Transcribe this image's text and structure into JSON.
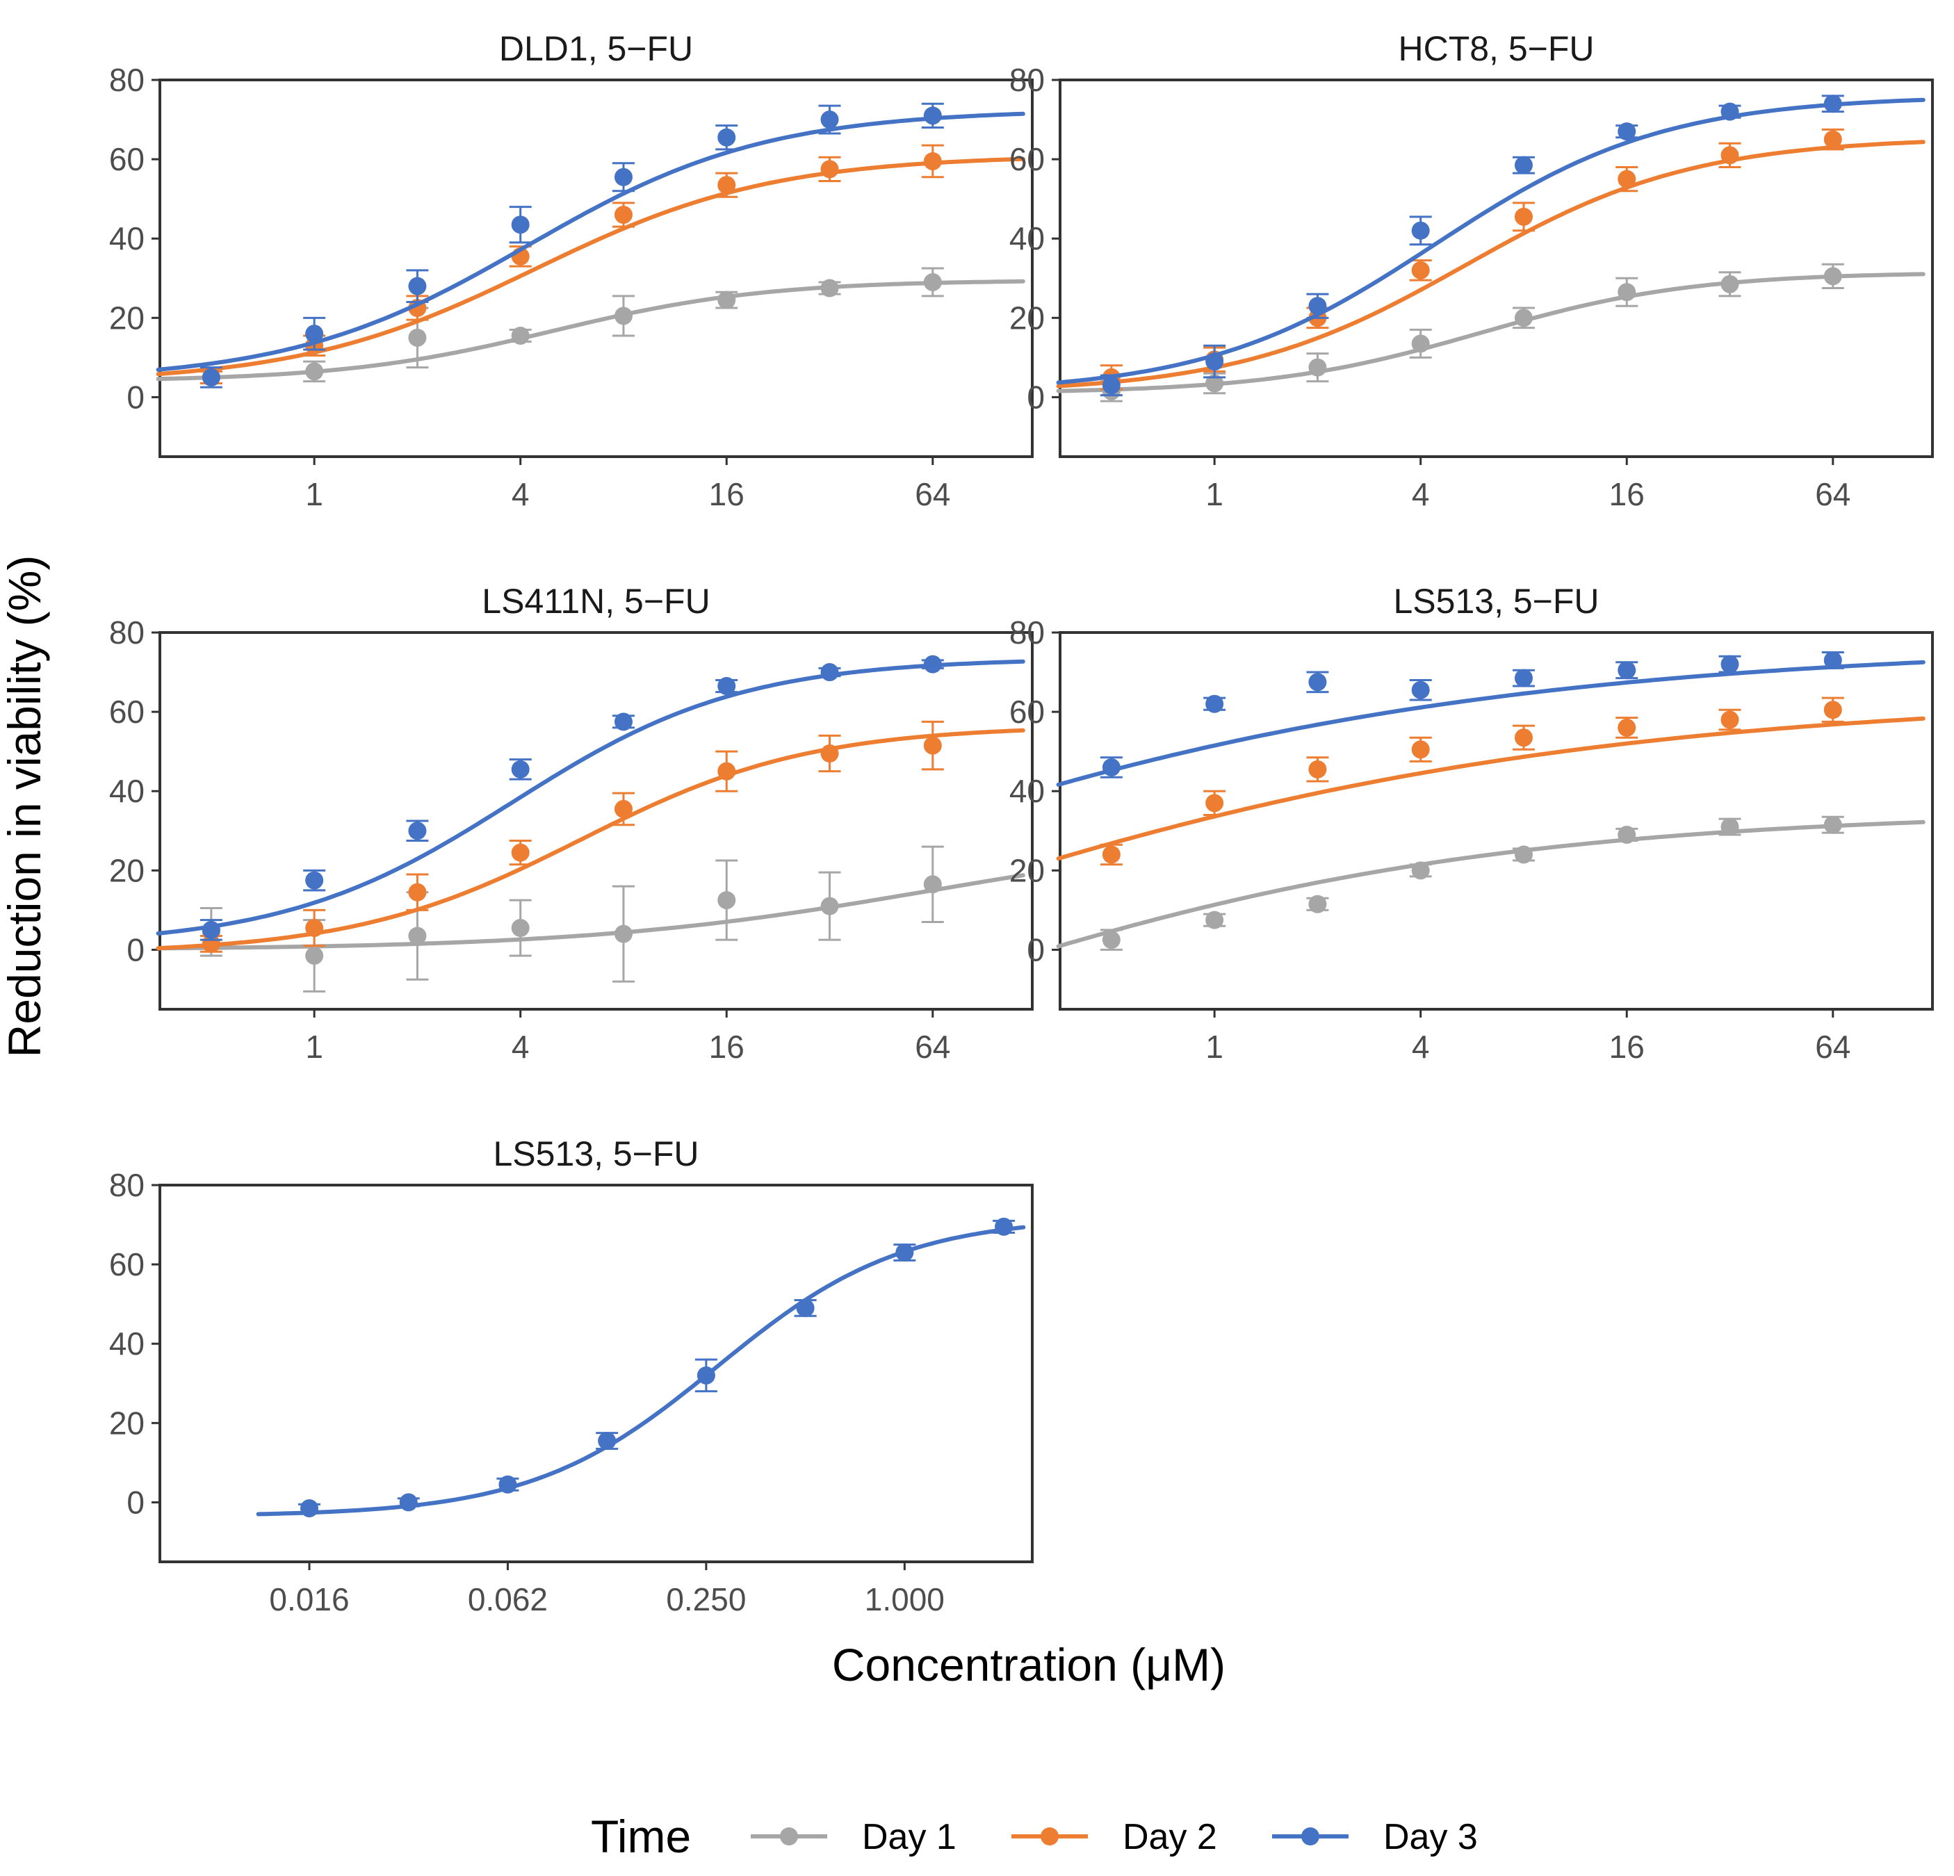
{
  "figure": {
    "ylabel": "Reduction in viability (%)",
    "xlabel": "Concentration (μM)",
    "legend": {
      "title": "Time",
      "items": [
        {
          "label": "Day 1",
          "color": "#a6a6a6"
        },
        {
          "label": "Day 2",
          "color": "#ed7d31"
        },
        {
          "label": "Day 3",
          "color": "#4472c4"
        }
      ]
    }
  },
  "chart_data": [
    {
      "type": "line",
      "title": "DLD1, 5−FU",
      "x_scale": "log2",
      "xlim": [
        0.354,
        125
      ],
      "ylim": [
        -15,
        80
      ],
      "x_ticks": [
        1,
        4,
        16,
        64
      ],
      "x_tick_labels": [
        "1",
        "4",
        "16",
        "64"
      ],
      "y_ticks": [
        0,
        20,
        40,
        60,
        80
      ],
      "y_tick_labels": [
        "0",
        "20",
        "40",
        "60",
        "80"
      ],
      "series": [
        {
          "name": "Day 1",
          "x": [
            0.5,
            1,
            2,
            4,
            8,
            16,
            32,
            64
          ],
          "values": [
            5,
            6.5,
            15,
            15.5,
            20.5,
            24.5,
            27.5,
            29
          ],
          "errors": [
            1.5,
            2.5,
            7.5,
            1.5,
            5,
            2,
            1.5,
            3.5
          ],
          "fit": {
            "bottom": 4,
            "top": 29.5,
            "ec50": 5,
            "hill": 1.4
          }
        },
        {
          "name": "Day 2",
          "x": [
            0.5,
            1,
            2,
            4,
            8,
            16,
            32,
            64
          ],
          "values": [
            5,
            13,
            22.5,
            35.5,
            46,
            53.5,
            57.5,
            59.5
          ],
          "errors": [
            1.5,
            2.5,
            3,
            2.5,
            3,
            3,
            3,
            4
          ],
          "fit": {
            "bottom": 3.5,
            "top": 61,
            "ec50": 4.4,
            "hill": 1.25
          }
        },
        {
          "name": "Day 3",
          "x": [
            0.5,
            1,
            2,
            4,
            8,
            16,
            32,
            64
          ],
          "values": [
            5,
            16,
            28,
            43.5,
            55.5,
            65.5,
            70,
            71
          ],
          "errors": [
            2.5,
            4,
            4,
            4.5,
            3.5,
            3,
            3.5,
            3
          ],
          "fit": {
            "bottom": 4,
            "top": 72.5,
            "ec50": 4.2,
            "hill": 1.25
          }
        }
      ]
    },
    {
      "type": "line",
      "title": "HCT8, 5−FU",
      "x_scale": "log2",
      "xlim": [
        0.354,
        125
      ],
      "ylim": [
        -15,
        80
      ],
      "x_ticks": [
        1,
        4,
        16,
        64
      ],
      "x_tick_labels": [
        "1",
        "4",
        "16",
        "64"
      ],
      "y_ticks": [
        0,
        20,
        40,
        60,
        80
      ],
      "y_tick_labels": [
        "0",
        "20",
        "40",
        "60",
        "80"
      ],
      "series": [
        {
          "name": "Day 1",
          "x": [
            0.5,
            1,
            2,
            4,
            8,
            16,
            32,
            64
          ],
          "values": [
            1.5,
            3.5,
            7.5,
            13.5,
            20,
            26.5,
            28.5,
            30.5
          ],
          "errors": [
            2.5,
            2.5,
            3.5,
            3.5,
            2.5,
            3.5,
            3,
            3
          ],
          "fit": {
            "bottom": 1,
            "top": 31.5,
            "ec50": 6,
            "hill": 1.4
          }
        },
        {
          "name": "Day 2",
          "x": [
            0.5,
            1,
            2,
            4,
            8,
            16,
            32,
            64
          ],
          "values": [
            5,
            9.5,
            20,
            32,
            45.5,
            55,
            61,
            65
          ],
          "errors": [
            3,
            3,
            2.5,
            2.5,
            3.5,
            3,
            3,
            2.5
          ],
          "fit": {
            "bottom": 1,
            "top": 65.5,
            "ec50": 5.4,
            "hill": 1.3
          }
        },
        {
          "name": "Day 3",
          "x": [
            0.5,
            1,
            2,
            4,
            8,
            16,
            32,
            64
          ],
          "values": [
            3,
            9,
            23,
            42,
            58.5,
            67,
            72,
            74
          ],
          "errors": [
            2.5,
            4,
            3,
            3.5,
            2,
            1.5,
            1.5,
            2
          ],
          "fit": {
            "bottom": 1,
            "top": 76,
            "ec50": 4.4,
            "hill": 1.3
          }
        }
      ]
    },
    {
      "type": "line",
      "title": "LS411N, 5−FU",
      "x_scale": "log2",
      "xlim": [
        0.354,
        125
      ],
      "ylim": [
        -15,
        80
      ],
      "x_ticks": [
        1,
        4,
        16,
        64
      ],
      "x_tick_labels": [
        "1",
        "4",
        "16",
        "64"
      ],
      "y_ticks": [
        0,
        20,
        40,
        60,
        80
      ],
      "y_tick_labels": [
        "0",
        "20",
        "40",
        "60",
        "80"
      ],
      "series": [
        {
          "name": "Day 1",
          "x": [
            0.5,
            1,
            2,
            4,
            8,
            16,
            32,
            64
          ],
          "values": [
            4.5,
            -1.5,
            3.5,
            5.5,
            4,
            12.5,
            11,
            16.5
          ],
          "errors": [
            6,
            9,
            11,
            7,
            12,
            10,
            8.5,
            9.5
          ],
          "fit": {
            "bottom": 0,
            "top": 30,
            "ec50": 64,
            "hill": 0.85
          }
        },
        {
          "name": "Day 2",
          "x": [
            0.5,
            1,
            2,
            4,
            8,
            16,
            32,
            64
          ],
          "values": [
            1.5,
            5.5,
            14.5,
            24.5,
            35.5,
            45,
            49.5,
            51.5
          ],
          "errors": [
            2,
            4.5,
            4.5,
            3,
            4,
            5,
            4.5,
            6
          ],
          "fit": {
            "bottom": -1,
            "top": 56.5,
            "ec50": 6,
            "hill": 1.3
          }
        },
        {
          "name": "Day 3",
          "x": [
            0.5,
            1,
            2,
            4,
            8,
            16,
            32,
            64
          ],
          "values": [
            5,
            17.5,
            30,
            45.5,
            57.5,
            66.5,
            70,
            72
          ],
          "errors": [
            2.5,
            2.5,
            2.5,
            2.5,
            1.5,
            1.5,
            1,
            1
          ],
          "fit": {
            "bottom": 1,
            "top": 73.5,
            "ec50": 3.8,
            "hill": 1.3
          }
        }
      ]
    },
    {
      "type": "line",
      "title": "LS513, 5−FU",
      "x_scale": "log2",
      "xlim": [
        0.354,
        125
      ],
      "ylim": [
        -15,
        80
      ],
      "x_ticks": [
        1,
        4,
        16,
        64
      ],
      "x_tick_labels": [
        "1",
        "4",
        "16",
        "64"
      ],
      "y_ticks": [
        0,
        20,
        40,
        60,
        80
      ],
      "y_tick_labels": [
        "0",
        "20",
        "40",
        "60",
        "80"
      ],
      "series": [
        {
          "name": "Day 1",
          "x": [
            0.5,
            1,
            2,
            4,
            8,
            16,
            32,
            64
          ],
          "values": [
            2.5,
            7.5,
            11.5,
            20,
            24,
            29,
            31,
            31.5
          ],
          "errors": [
            2.5,
            1.5,
            1.5,
            1.5,
            1.5,
            1.5,
            2,
            2
          ],
          "fit": {
            "bottom": -60,
            "top": 35,
            "ec50": 0.11,
            "hill": 0.5
          }
        },
        {
          "name": "Day 2",
          "x": [
            0.5,
            1,
            2,
            4,
            8,
            16,
            32,
            64
          ],
          "values": [
            24,
            37,
            45.5,
            50.5,
            53.5,
            56,
            58,
            60.5
          ],
          "errors": [
            2.5,
            3,
            3,
            3,
            3,
            2.5,
            2.5,
            3
          ],
          "fit": {
            "bottom": -60,
            "top": 64,
            "ec50": 0.06,
            "hill": 0.4
          }
        },
        {
          "name": "Day 3",
          "x": [
            0.5,
            1,
            2,
            4,
            8,
            16,
            32,
            64
          ],
          "values": [
            46,
            62,
            67.5,
            65.5,
            68.5,
            70.5,
            72,
            73
          ],
          "errors": [
            2.5,
            1.5,
            2.5,
            2.5,
            2,
            2,
            2,
            2
          ],
          "fit": {
            "bottom": -60,
            "top": 77,
            "ec50": 0.025,
            "hill": 0.4
          }
        }
      ]
    },
    {
      "type": "line",
      "title": "LS513, 5−FU",
      "x_scale": "log2",
      "xlim": [
        0.0055,
        2.44
      ],
      "ylim": [
        -15,
        80
      ],
      "x_ticks": [
        0.015625,
        0.0625,
        0.25,
        1.0
      ],
      "x_tick_labels": [
        "0.016",
        "0.062",
        "0.250",
        "1.000"
      ],
      "y_ticks": [
        0,
        20,
        40,
        60,
        80
      ],
      "y_tick_labels": [
        "0",
        "20",
        "40",
        "60",
        "80"
      ],
      "series": [
        {
          "name": "Day 3",
          "x": [
            0.015625,
            0.03125,
            0.0625,
            0.125,
            0.25,
            0.5,
            1.0,
            2.0
          ],
          "values": [
            -1.5,
            0,
            4.5,
            15.5,
            32,
            49,
            63,
            69.5
          ],
          "errors": [
            1,
            1,
            1.5,
            2,
            4,
            2,
            2,
            1.5
          ],
          "fit": {
            "bottom": -3.5,
            "top": 72,
            "ec50": 0.27,
            "hill": 1.55
          }
        }
      ]
    }
  ]
}
